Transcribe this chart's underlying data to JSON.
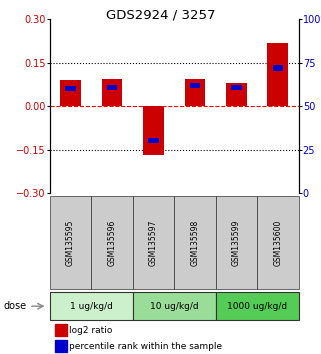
{
  "title": "GDS2924 / 3257",
  "samples": [
    "GSM135595",
    "GSM135596",
    "GSM135597",
    "GSM135598",
    "GSM135599",
    "GSM135600"
  ],
  "log2_ratio": [
    0.09,
    0.095,
    -0.17,
    0.095,
    0.08,
    0.22
  ],
  "percentile_rank": [
    60,
    61,
    30,
    62,
    61,
    72
  ],
  "dose_groups": [
    {
      "label": "1 ug/kg/d",
      "color": "#ccf0cc",
      "start": 0,
      "end": 2
    },
    {
      "label": "10 ug/kg/d",
      "color": "#99dd99",
      "start": 2,
      "end": 4
    },
    {
      "label": "1000 ug/kg/d",
      "color": "#55cc55",
      "start": 4,
      "end": 6
    }
  ],
  "ylim_left": [
    -0.3,
    0.3
  ],
  "ylim_right": [
    0,
    100
  ],
  "yticks_left": [
    -0.3,
    -0.15,
    0,
    0.15,
    0.3
  ],
  "yticks_right": [
    0,
    25,
    50,
    75,
    100
  ],
  "bar_width": 0.5,
  "blue_bar_width": 0.25,
  "red_color": "#cc0000",
  "blue_color": "#0000cc",
  "gray_color": "#cccccc",
  "legend_red": "log2 ratio",
  "legend_blue": "percentile rank within the sample",
  "dose_label": "dose"
}
